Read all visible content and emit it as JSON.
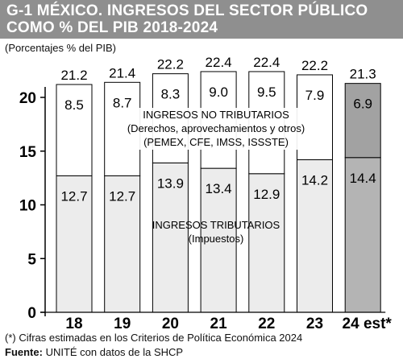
{
  "header": {
    "title_line1": "G-1 MÉXICO. INGRESOS DEL SECTOR PÚBLICO",
    "title_line2": "COMO % DEL PIB 2018-2024",
    "units": "(Porcentajes % del PIB)"
  },
  "chart_data": {
    "type": "bar",
    "stacked": true,
    "categories": [
      "18",
      "19",
      "20",
      "21",
      "22",
      "23",
      "24 est*"
    ],
    "totals": [
      "21.2",
      "21.4",
      "22.2",
      "22.4",
      "22.4",
      "22.2",
      "21.3"
    ],
    "series": [
      {
        "values": [
          12.7,
          12.7,
          13.9,
          13.4,
          12.9,
          14.2,
          14.4
        ]
      },
      {
        "values": [
          8.5,
          8.7,
          8.3,
          9.0,
          9.5,
          7.9,
          6.9
        ]
      }
    ],
    "value_labels": {
      "tributarios": [
        "12.7",
        "12.7",
        "13.9",
        "13.4",
        "12.9",
        "14.2",
        "14.4"
      ],
      "no_tributarios": [
        "8.5",
        "8.7",
        "8.3",
        "9.0",
        "9.5",
        "7.9",
        "6.9"
      ]
    },
    "y_ticks": [
      "0",
      "5",
      "10",
      "15",
      "20"
    ],
    "ylim": [
      0,
      25
    ],
    "annotations": {
      "no_tributarios": [
        "INGRESOS NO TRIBUTARIOS",
        "(Derechos, aprovechamientos y otros)",
        "(PEMEX, CFE, IMSS, ISSSTE)"
      ],
      "tributarios": [
        "INGRESOS TRIBUTARIOS",
        "(Impuestos)"
      ]
    },
    "highlight_index": 6,
    "colors": {
      "tributarios": "#ececec",
      "no_tributarios": "#ffffff",
      "estimate_tributarios": "#b4b4b4",
      "estimate_no_tributarios": "#a2a2a2",
      "title_band": "#8f8f8f"
    }
  },
  "footer": {
    "note": "(*) Cifras estimadas en los Criterios de Política Económica 2024",
    "source_label": "Fuente:",
    "source_text": " UNITÉ con datos de la SHCP"
  }
}
